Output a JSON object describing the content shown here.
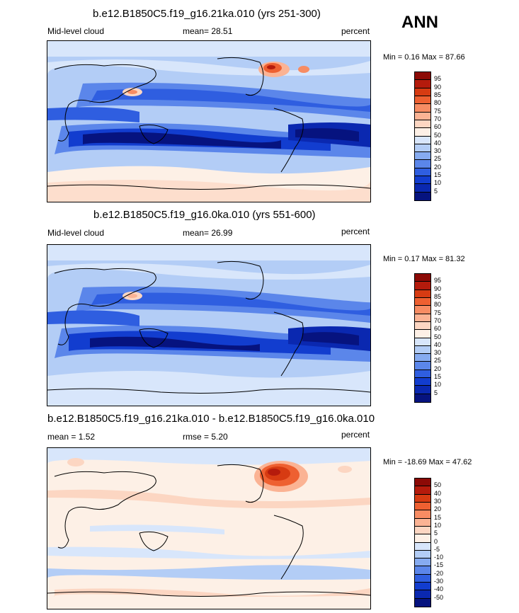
{
  "season": "ANN",
  "panels": [
    {
      "title": "b.e12.B1850C5.f19_g16.21ka.010 (yrs 251-300)",
      "left_label": "Mid-level cloud",
      "center_label": "mean=  28.51",
      "right_label": "percent",
      "minmax": "Min =   0.16 Max =  87.66",
      "colorbar": {
        "levels": [
          "95",
          "90",
          "85",
          "80",
          "75",
          "70",
          "60",
          "50",
          "40",
          "30",
          "25",
          "20",
          "15",
          "10",
          "5"
        ],
        "colors": [
          "#8c0a06",
          "#b51b0c",
          "#d73b12",
          "#ee6031",
          "#f78c63",
          "#fbb394",
          "#fcd6c2",
          "#fdf0e6",
          "#d8e6fb",
          "#b3cdf6",
          "#86abf0",
          "#5b86ea",
          "#2f5ee0",
          "#123dcf",
          "#0a28b0",
          "#06137f"
        ]
      }
    },
    {
      "title": "b.e12.B1850C5.f19_g16.0ka.010 (yrs 551-600)",
      "left_label": "Mid-level cloud",
      "center_label": "mean=  26.99",
      "right_label": "percent",
      "minmax": "Min =   0.17 Max =  81.32",
      "colorbar": {
        "levels": [
          "95",
          "90",
          "85",
          "80",
          "75",
          "70",
          "60",
          "50",
          "40",
          "30",
          "25",
          "20",
          "15",
          "10",
          "5"
        ],
        "colors": [
          "#8c0a06",
          "#b51b0c",
          "#d73b12",
          "#ee6031",
          "#f78c63",
          "#fbb394",
          "#fcd6c2",
          "#fdf0e6",
          "#d8e6fb",
          "#b3cdf6",
          "#86abf0",
          "#5b86ea",
          "#2f5ee0",
          "#123dcf",
          "#0a28b0",
          "#06137f"
        ]
      }
    },
    {
      "title": "b.e12.B1850C5.f19_g16.21ka.010 - b.e12.B1850C5.f19_g16.0ka.010",
      "left_label": "mean =   1.52",
      "center_label": "rmse =   5.20",
      "right_label": "percent",
      "minmax": "Min = -18.69 Max =  47.62",
      "colorbar": {
        "levels": [
          "50",
          "40",
          "30",
          "20",
          "15",
          "10",
          "5",
          "0",
          "-5",
          "-10",
          "-15",
          "-20",
          "-30",
          "-40",
          "-50"
        ],
        "colors": [
          "#8c0a06",
          "#b51b0c",
          "#d73b12",
          "#ee6031",
          "#f78c63",
          "#fbb394",
          "#fcd6c2",
          "#fdf0e6",
          "#d8e6fb",
          "#b3cdf6",
          "#86abf0",
          "#5b86ea",
          "#2f5ee0",
          "#123dcf",
          "#0a28b0",
          "#06137f"
        ]
      }
    }
  ],
  "chart_data": [
    {
      "type": "heatmap",
      "title": "b.e12.B1850C5.f19_g16.21ka.010 (yrs 251-300)",
      "variable": "Mid-level cloud",
      "units": "percent",
      "mean": 28.51,
      "min": 0.16,
      "max": 87.66,
      "contour_levels": [
        5,
        10,
        15,
        20,
        25,
        30,
        40,
        50,
        60,
        70,
        75,
        80,
        85,
        90,
        95
      ]
    },
    {
      "type": "heatmap",
      "title": "b.e12.B1850C5.f19_g16.0ka.010 (yrs 551-600)",
      "variable": "Mid-level cloud",
      "units": "percent",
      "mean": 26.99,
      "min": 0.17,
      "max": 81.32,
      "contour_levels": [
        5,
        10,
        15,
        20,
        25,
        30,
        40,
        50,
        60,
        70,
        75,
        80,
        85,
        90,
        95
      ]
    },
    {
      "type": "heatmap",
      "title": "b.e12.B1850C5.f19_g16.21ka.010 - b.e12.B1850C5.f19_g16.0ka.010",
      "units": "percent",
      "mean": 1.52,
      "rmse": 5.2,
      "min": -18.69,
      "max": 47.62,
      "contour_levels": [
        -50,
        -40,
        -30,
        -20,
        -15,
        -10,
        -5,
        0,
        5,
        10,
        15,
        20,
        30,
        40,
        50
      ]
    }
  ]
}
